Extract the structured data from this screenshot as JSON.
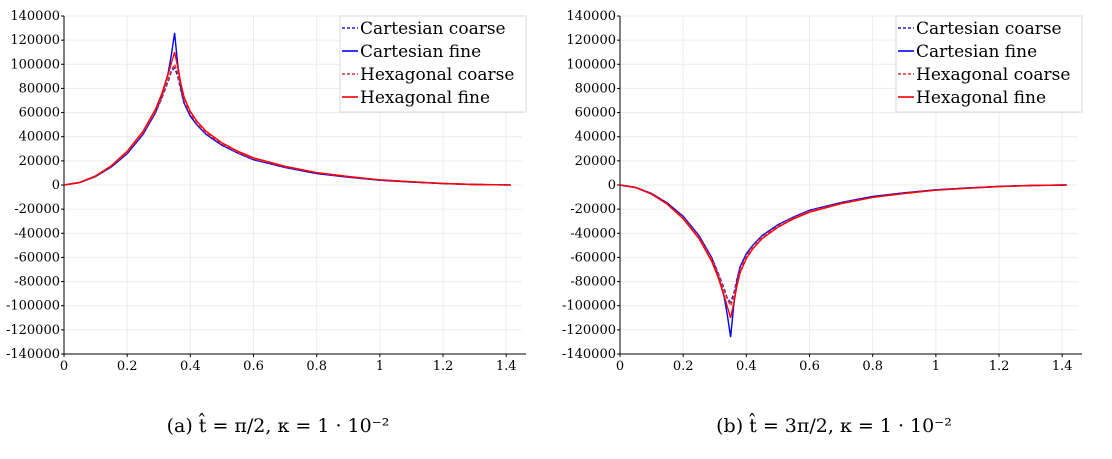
{
  "chart_data": [
    {
      "type": "line",
      "caption": "(a) t̂ = π/2, κ = 1 · 10⁻²",
      "xlim": [
        0,
        1.45
      ],
      "ylim": [
        -140000,
        140000
      ],
      "xticks": [
        "0",
        "0.2",
        "0.4",
        "0.6",
        "0.8",
        "1",
        "1.2",
        "1.4"
      ],
      "yticks": [
        "140000",
        "120000",
        "100000",
        "80000",
        "60000",
        "40000",
        "20000",
        "0",
        "-20000",
        "-40000",
        "-60000",
        "-80000",
        "-100000",
        "-120000",
        "-140000"
      ],
      "grid": true,
      "legend_position": "top-right",
      "series": [
        {
          "name": "Cartesian coarse",
          "color": "#1f1fd0",
          "dash": "dashed",
          "x": [
            0,
            0.05,
            0.1,
            0.15,
            0.2,
            0.25,
            0.29,
            0.31,
            0.33,
            0.34,
            0.35,
            0.36,
            0.37,
            0.38,
            0.4,
            0.42,
            0.45,
            0.5,
            0.55,
            0.6,
            0.7,
            0.8,
            0.9,
            1.0,
            1.1,
            1.2,
            1.3,
            1.414
          ],
          "y": [
            0,
            2000,
            7000,
            15000,
            26000,
            42000,
            60000,
            72000,
            86000,
            94000,
            97000,
            90000,
            78000,
            68000,
            58000,
            50000,
            42000,
            33000,
            26500,
            21000,
            14500,
            9500,
            6500,
            4000,
            2500,
            1200,
            400,
            0
          ]
        },
        {
          "name": "Cartesian fine",
          "color": "#0000ff",
          "dash": "solid",
          "x": [
            0,
            0.05,
            0.1,
            0.15,
            0.2,
            0.25,
            0.29,
            0.31,
            0.33,
            0.34,
            0.35,
            0.36,
            0.37,
            0.38,
            0.4,
            0.42,
            0.45,
            0.5,
            0.55,
            0.6,
            0.7,
            0.8,
            0.9,
            1.0,
            1.1,
            1.2,
            1.3,
            1.414
          ],
          "y": [
            0,
            2000,
            7000,
            15000,
            26000,
            42000,
            60000,
            74000,
            93000,
            108000,
            126000,
            100000,
            80000,
            68000,
            57000,
            50000,
            42000,
            33000,
            26500,
            21000,
            14500,
            9500,
            6500,
            4000,
            2500,
            1200,
            400,
            0
          ]
        },
        {
          "name": "Hexagonal coarse",
          "color": "#e03030",
          "dash": "dashed",
          "x": [
            0,
            0.05,
            0.1,
            0.15,
            0.2,
            0.25,
            0.29,
            0.31,
            0.33,
            0.34,
            0.35,
            0.36,
            0.37,
            0.38,
            0.4,
            0.42,
            0.45,
            0.5,
            0.55,
            0.6,
            0.7,
            0.8,
            0.9,
            1.0,
            1.1,
            1.2,
            1.3,
            1.414
          ],
          "y": [
            0,
            2100,
            7200,
            15500,
            27000,
            43000,
            61000,
            73000,
            88000,
            95000,
            100000,
            93000,
            81000,
            70000,
            59000,
            51000,
            43000,
            34000,
            27000,
            21500,
            15000,
            10000,
            6800,
            4200,
            2600,
            1300,
            450,
            0
          ]
        },
        {
          "name": "Hexagonal fine",
          "color": "#ff0000",
          "dash": "solid",
          "x": [
            0,
            0.05,
            0.1,
            0.15,
            0.2,
            0.25,
            0.29,
            0.31,
            0.33,
            0.34,
            0.35,
            0.36,
            0.37,
            0.38,
            0.4,
            0.42,
            0.45,
            0.5,
            0.55,
            0.6,
            0.7,
            0.8,
            0.9,
            1.0,
            1.1,
            1.2,
            1.3,
            1.414
          ],
          "y": [
            0,
            2200,
            7500,
            16000,
            28000,
            44500,
            63000,
            76000,
            92000,
            101000,
            110000,
            98000,
            84000,
            73000,
            61000,
            53000,
            44500,
            35000,
            28000,
            22500,
            15500,
            10300,
            7000,
            4300,
            2700,
            1300,
            450,
            0
          ]
        }
      ]
    },
    {
      "type": "line",
      "caption": "(b) t̂ = 3π/2, κ = 1 · 10⁻²",
      "xlim": [
        0,
        1.45
      ],
      "ylim": [
        -140000,
        140000
      ],
      "xticks": [
        "0",
        "0.2",
        "0.4",
        "0.6",
        "0.8",
        "1",
        "1.2",
        "1.4"
      ],
      "yticks": [
        "140000",
        "120000",
        "100000",
        "80000",
        "60000",
        "40000",
        "20000",
        "0",
        "-20000",
        "-40000",
        "-60000",
        "-80000",
        "-100000",
        "-120000",
        "-140000"
      ],
      "grid": true,
      "legend_position": "top-right",
      "series": [
        {
          "name": "Cartesian coarse",
          "color": "#1f1fd0",
          "dash": "dashed",
          "x": [
            0,
            0.05,
            0.1,
            0.15,
            0.2,
            0.25,
            0.29,
            0.31,
            0.33,
            0.34,
            0.35,
            0.36,
            0.37,
            0.38,
            0.4,
            0.42,
            0.45,
            0.5,
            0.55,
            0.6,
            0.7,
            0.8,
            0.9,
            1.0,
            1.1,
            1.2,
            1.3,
            1.414
          ],
          "y": [
            0,
            -2000,
            -7000,
            -15000,
            -26000,
            -42000,
            -60000,
            -72000,
            -86000,
            -94000,
            -97000,
            -90000,
            -78000,
            -68000,
            -58000,
            -50000,
            -42000,
            -33000,
            -26500,
            -21000,
            -14500,
            -9500,
            -6500,
            -4000,
            -2500,
            -1200,
            -400,
            0
          ]
        },
        {
          "name": "Cartesian fine",
          "color": "#0000ff",
          "dash": "solid",
          "x": [
            0,
            0.05,
            0.1,
            0.15,
            0.2,
            0.25,
            0.29,
            0.31,
            0.33,
            0.34,
            0.35,
            0.36,
            0.37,
            0.38,
            0.4,
            0.42,
            0.45,
            0.5,
            0.55,
            0.6,
            0.7,
            0.8,
            0.9,
            1.0,
            1.1,
            1.2,
            1.3,
            1.414
          ],
          "y": [
            0,
            -2000,
            -7000,
            -15000,
            -26000,
            -42000,
            -60000,
            -74000,
            -93000,
            -108000,
            -126000,
            -100000,
            -80000,
            -68000,
            -57000,
            -50000,
            -42000,
            -33000,
            -26500,
            -21000,
            -14500,
            -9500,
            -6500,
            -4000,
            -2500,
            -1200,
            -400,
            0
          ]
        },
        {
          "name": "Hexagonal coarse",
          "color": "#e03030",
          "dash": "dashed",
          "x": [
            0,
            0.05,
            0.1,
            0.15,
            0.2,
            0.25,
            0.29,
            0.31,
            0.33,
            0.34,
            0.35,
            0.36,
            0.37,
            0.38,
            0.4,
            0.42,
            0.45,
            0.5,
            0.55,
            0.6,
            0.7,
            0.8,
            0.9,
            1.0,
            1.1,
            1.2,
            1.3,
            1.414
          ],
          "y": [
            0,
            -2100,
            -7200,
            -15500,
            -27000,
            -43000,
            -61000,
            -73000,
            -88000,
            -95000,
            -100000,
            -93000,
            -81000,
            -70000,
            -59000,
            -51000,
            -43000,
            -34000,
            -27000,
            -21500,
            -15000,
            -10000,
            -6800,
            -4200,
            -2600,
            -1300,
            -450,
            0
          ]
        },
        {
          "name": "Hexagonal fine",
          "color": "#ff0000",
          "dash": "solid",
          "x": [
            0,
            0.05,
            0.1,
            0.15,
            0.2,
            0.25,
            0.29,
            0.31,
            0.33,
            0.34,
            0.35,
            0.36,
            0.37,
            0.38,
            0.4,
            0.42,
            0.45,
            0.5,
            0.55,
            0.6,
            0.7,
            0.8,
            0.9,
            1.0,
            1.1,
            1.2,
            1.3,
            1.414
          ],
          "y": [
            0,
            -2200,
            -7500,
            -16000,
            -28000,
            -44500,
            -63000,
            -76000,
            -92000,
            -101000,
            -110000,
            -98000,
            -84000,
            -73000,
            -61000,
            -53000,
            -44500,
            -35000,
            -28000,
            -22500,
            -15500,
            -10300,
            -7000,
            -4300,
            -2700,
            -1300,
            -450,
            0
          ]
        }
      ]
    }
  ]
}
